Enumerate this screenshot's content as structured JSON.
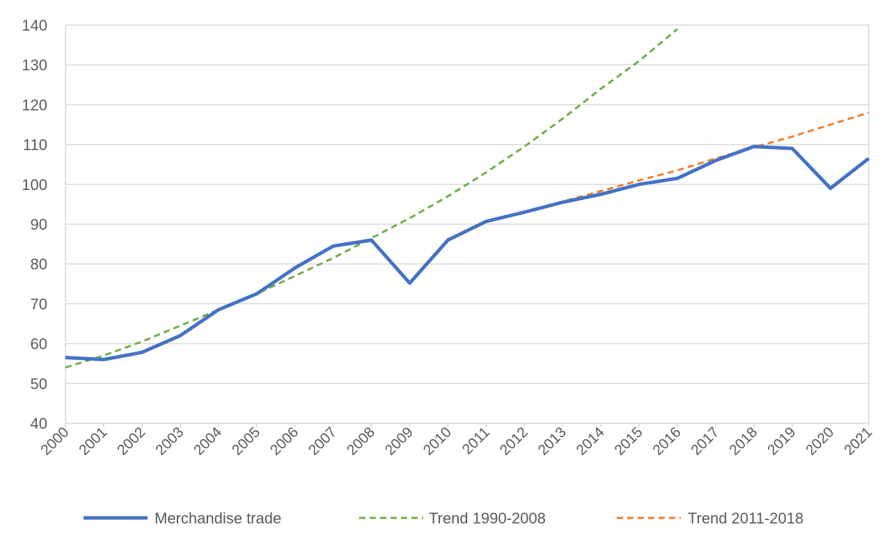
{
  "chart_data": {
    "type": "line",
    "title": "",
    "xlabel": "",
    "ylabel": "",
    "x": [
      "2000",
      "2001",
      "2002",
      "2003",
      "2004",
      "2005",
      "2006",
      "2007",
      "2008",
      "2009",
      "2010",
      "2011",
      "2012",
      "2013",
      "2014",
      "2015",
      "2016",
      "2017",
      "2018",
      "2019",
      "2020",
      "2021"
    ],
    "ylim": [
      40,
      140
    ],
    "yticks": [
      40,
      50,
      60,
      70,
      80,
      90,
      100,
      110,
      120,
      130,
      140
    ],
    "grid": true,
    "legend_position": "bottom",
    "series": [
      {
        "name": "Merchandise trade",
        "style": "solid",
        "color": "#4472C4",
        "values": [
          56.5,
          56,
          57.8,
          62,
          68.5,
          72.5,
          79,
          84.5,
          86,
          75.2,
          86,
          90.7,
          93,
          95.5,
          97.5,
          100,
          101.5,
          106,
          109.5,
          109,
          99,
          106.5
        ]
      },
      {
        "name": "Trend 1990-2008",
        "style": "dashed",
        "color": "#70AD47",
        "values": [
          54,
          57,
          60.5,
          64.5,
          68.5,
          72.5,
          77,
          81.5,
          86.5,
          91.5,
          97,
          103,
          109.5,
          116.5,
          124,
          131,
          139,
          null,
          null,
          null,
          null,
          null
        ]
      },
      {
        "name": "Trend 2011-2018",
        "style": "dashed",
        "color": "#ED7D31",
        "values": [
          null,
          null,
          null,
          null,
          null,
          null,
          null,
          null,
          null,
          null,
          null,
          90.5,
          93,
          95.7,
          98.3,
          101,
          103.5,
          106.5,
          109.3,
          112,
          115,
          118
        ]
      }
    ]
  }
}
